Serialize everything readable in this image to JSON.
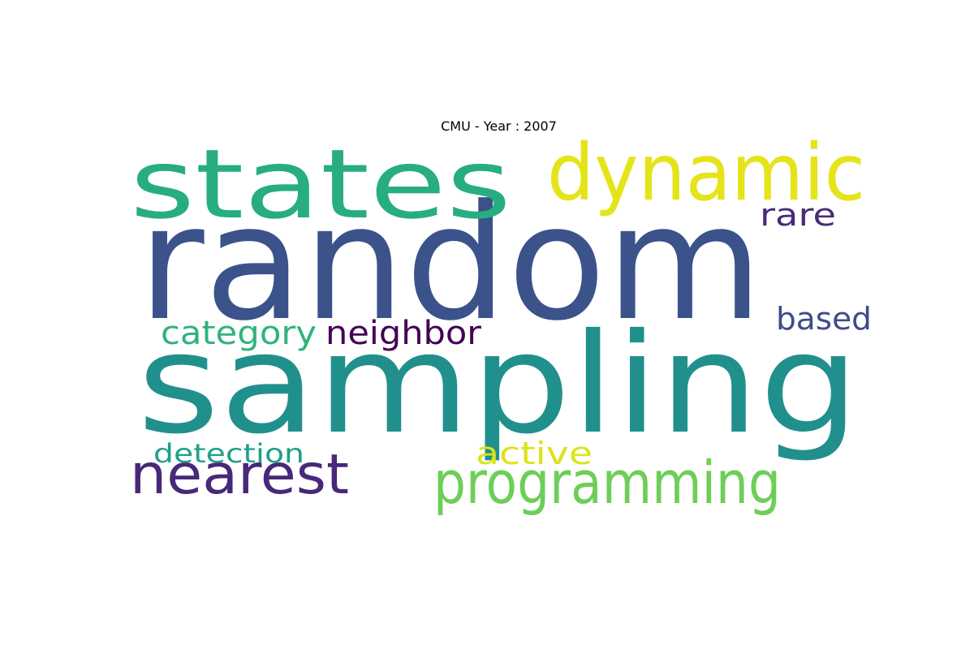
{
  "title": "CMU - Year : 2007",
  "words": [
    {
      "text": "random",
      "color": "#3b528b"
    },
    {
      "text": "sampling",
      "color": "#21908d"
    },
    {
      "text": "states",
      "color": "#27ad81"
    },
    {
      "text": "dynamic",
      "color": "#e5e419"
    },
    {
      "text": "programming",
      "color": "#6ece58"
    },
    {
      "text": "nearest",
      "color": "#482878"
    },
    {
      "text": "rare",
      "color": "#472c7a"
    },
    {
      "text": "based",
      "color": "#3e4c8a"
    },
    {
      "text": "category",
      "color": "#2fb47c"
    },
    {
      "text": "neighbor",
      "color": "#440154"
    },
    {
      "text": "detection",
      "color": "#1fa088"
    },
    {
      "text": "active",
      "color": "#dde318"
    }
  ]
}
